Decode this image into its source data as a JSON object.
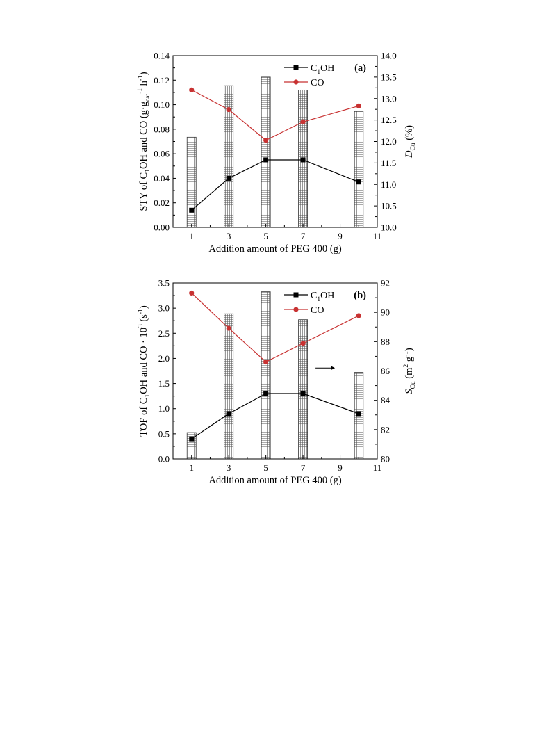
{
  "chart_data": [
    {
      "type": "bar+line",
      "panel_label": "(a)",
      "xlabel": "Addition amount of PEG 400 (g)",
      "ylabel": {
        "main": "STY of C",
        "sub1": "1",
        "mid1": "OH and CO (g·g",
        "sub2": "cat",
        "sup2": "-1",
        "mid2": " h",
        "sup3": "-1",
        "end": ")"
      },
      "y2label": {
        "italic": "D",
        "sub": "Cu",
        "end": " (%)"
      },
      "xlim": [
        0,
        11
      ],
      "xticks": [
        1,
        3,
        5,
        7,
        9,
        11
      ],
      "xtick_labels": [
        "1",
        "3",
        "5",
        "7",
        "9",
        "11"
      ],
      "ylim": [
        0,
        0.14
      ],
      "yticks": [
        0,
        0.02,
        0.04,
        0.06,
        0.08,
        0.1,
        0.12,
        0.14
      ],
      "ytick_labels": [
        "0.00",
        "0.02",
        "0.04",
        "0.06",
        "0.08",
        "0.10",
        "0.12",
        "0.14"
      ],
      "y2lim": [
        10.0,
        14.0
      ],
      "y2ticks": [
        10.0,
        10.5,
        11.0,
        11.5,
        12.0,
        12.5,
        13.0,
        13.5,
        14.0
      ],
      "y2tick_labels": [
        "10.0",
        "10.5",
        "11.0",
        "11.5",
        "12.0",
        "12.5",
        "13.0",
        "13.5",
        "14.0"
      ],
      "bars": {
        "axis": "right",
        "x": [
          1,
          3,
          5,
          7,
          10
        ],
        "values": [
          12.1,
          13.3,
          13.5,
          13.2,
          12.7
        ]
      },
      "series": [
        {
          "name": "C1OH",
          "legend_main": "C",
          "legend_sub": "1",
          "legend_end": "OH",
          "marker": "square",
          "color": "#000000",
          "x": [
            1,
            3,
            5,
            7,
            10
          ],
          "values": [
            0.014,
            0.04,
            0.055,
            0.055,
            0.037
          ]
        },
        {
          "name": "CO",
          "legend_main": "CO",
          "legend_sub": "",
          "legend_end": "",
          "marker": "circle",
          "color": "#c83232",
          "x": [
            1,
            3,
            5,
            7,
            10
          ],
          "values": [
            0.112,
            0.096,
            0.071,
            0.086,
            0.099
          ]
        }
      ],
      "legend": "top-right",
      "grid": false
    },
    {
      "type": "bar+line",
      "panel_label": "(b)",
      "xlabel": "Addition amount of PEG 400 (g)",
      "ylabel": {
        "main": "TOF of C",
        "sub1": "1",
        "mid1": "OH and CO · 10",
        "sup1": "3",
        "mid2": " (s",
        "sup2": "-1",
        "end": ")"
      },
      "y2label": {
        "italic": "S",
        "sub": "Cu",
        "end": " (m",
        "sup1": "2",
        "mid": " g",
        "sup2": "-1",
        "close": ")"
      },
      "xlim": [
        0,
        11
      ],
      "xticks": [
        1,
        3,
        5,
        7,
        9,
        11
      ],
      "xtick_labels": [
        "1",
        "3",
        "5",
        "7",
        "9",
        "11"
      ],
      "ylim": [
        0,
        3.5
      ],
      "yticks": [
        0,
        0.5,
        1.0,
        1.5,
        2.0,
        2.5,
        3.0,
        3.5
      ],
      "ytick_labels": [
        "0.0",
        "0.5",
        "1.0",
        "1.5",
        "2.0",
        "2.5",
        "3.0",
        "3.5"
      ],
      "y2lim": [
        80,
        92
      ],
      "y2ticks": [
        80,
        82,
        84,
        86,
        88,
        90,
        92
      ],
      "y2tick_labels": [
        "80",
        "82",
        "84",
        "86",
        "88",
        "90",
        "92"
      ],
      "bars": {
        "axis": "right",
        "x": [
          1,
          3,
          5,
          7,
          10
        ],
        "values": [
          81.8,
          89.9,
          91.4,
          89.5,
          85.9
        ]
      },
      "series": [
        {
          "name": "C1OH",
          "legend_main": "C",
          "legend_sub": "1",
          "legend_end": "OH",
          "marker": "square",
          "color": "#000000",
          "x": [
            1,
            3,
            5,
            7,
            10
          ],
          "values": [
            0.4,
            0.9,
            1.3,
            1.3,
            0.9
          ]
        },
        {
          "name": "CO",
          "legend_main": "CO",
          "legend_sub": "",
          "legend_end": "",
          "marker": "circle",
          "color": "#c83232",
          "x": [
            1,
            3,
            5,
            7,
            10
          ],
          "values": [
            3.3,
            2.6,
            1.93,
            2.3,
            2.85
          ]
        }
      ],
      "annotation": {
        "type": "arrow",
        "direction": "right",
        "at_x": 7.3,
        "at_y2": 86.2
      },
      "legend": "top-right",
      "grid": false
    }
  ]
}
